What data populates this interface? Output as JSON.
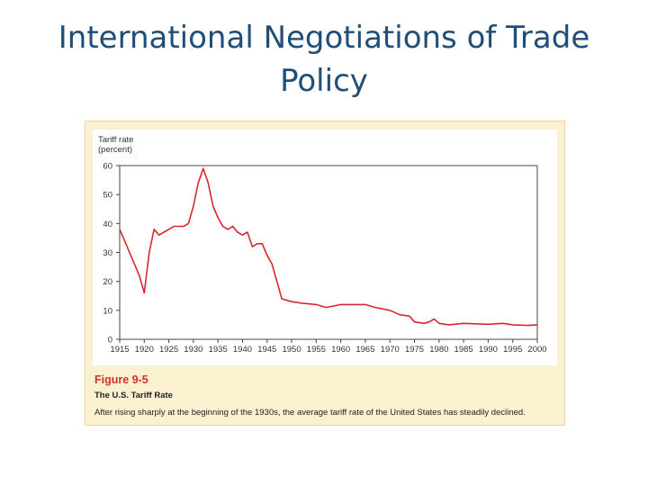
{
  "slide": {
    "title_line1": "International Negotiations of Trade",
    "title_line2": "Policy"
  },
  "figure": {
    "label": "Figure 9-5",
    "name": "The U.S. Tariff Rate",
    "description": "After rising sharply at the beginning of the 1930s, the average tariff rate of the United States has steadily declined."
  },
  "colors": {
    "line": "#d8282e",
    "panel": "#fbf0cf",
    "title": "#1f4e79"
  },
  "chart_data": {
    "type": "line",
    "ylabel_line1": "Tariff rate",
    "ylabel_line2": "(percent)",
    "xlim": [
      1915,
      2000
    ],
    "ylim": [
      0,
      60
    ],
    "x_ticks": [
      1915,
      1920,
      1925,
      1930,
      1935,
      1940,
      1945,
      1950,
      1955,
      1960,
      1965,
      1970,
      1975,
      1980,
      1985,
      1990,
      1995,
      2000
    ],
    "y_ticks": [
      0,
      10,
      20,
      30,
      40,
      50,
      60
    ],
    "grid": false,
    "series": [
      {
        "x": [
          1915,
          1916,
          1917,
          1918,
          1919,
          1920,
          1921,
          1922,
          1923,
          1924,
          1925,
          1926,
          1927,
          1928,
          1929,
          1930,
          1931,
          1932,
          1933,
          1934,
          1935,
          1936,
          1937,
          1938,
          1939,
          1940,
          1941,
          1942,
          1943,
          1944,
          1945,
          1946,
          1947,
          1948,
          1950,
          1952,
          1955,
          1957,
          1960,
          1963,
          1965,
          1967,
          1970,
          1972,
          1974,
          1975,
          1977,
          1978,
          1979,
          1980,
          1982,
          1985,
          1990,
          1993,
          1995,
          1998,
          2000
        ],
        "values": [
          38,
          34,
          30,
          26,
          22,
          16,
          30,
          38,
          36,
          37,
          38,
          39,
          39,
          39,
          40,
          46,
          54,
          59,
          54,
          46,
          42,
          39,
          38,
          39,
          37,
          36,
          37,
          32,
          33,
          33,
          29,
          26,
          20,
          14,
          13,
          12.5,
          12,
          11,
          12,
          12,
          12,
          11,
          10,
          8.5,
          8,
          6,
          5.5,
          6,
          7,
          5.5,
          5,
          5.5,
          5.2,
          5.5,
          5,
          4.8,
          5
        ]
      }
    ]
  }
}
